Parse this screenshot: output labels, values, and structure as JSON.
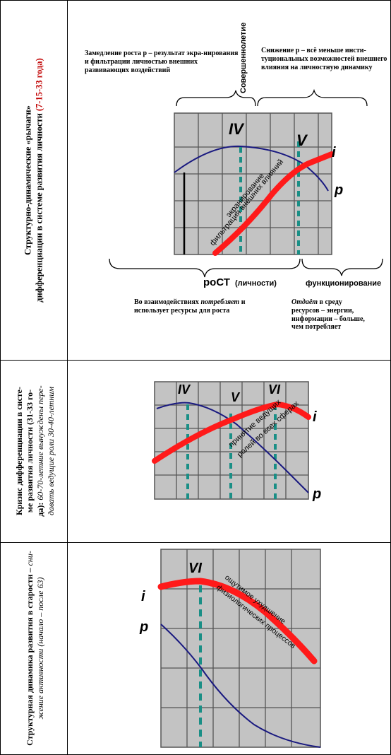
{
  "rows": [
    {
      "title_line1": "Структурно-динамические «рычаги»",
      "title_line2": "дифференциации в системе развития личности",
      "title_line2_highlight": "(7-15-33 года)",
      "top_left_note": "Замедление роста p – результат экра-нирования и фильтрации личностью внешних развивающих воздействий",
      "top_center_note": "Совершеннолетие",
      "top_right_note": "Снижение p – всё меньше инсти-туциональных возможностей внешнего влияния на личностную динамику",
      "phase_a": "IV",
      "phase_b": "V",
      "curve_i": "i",
      "curve_p": "p",
      "diag_text_1": "экранирование",
      "diag_text_2": "фильтрация внешних влияний",
      "growth_label": "роСТ",
      "growth_suffix": "(личности)",
      "function_label": "функционирование",
      "bottom_left_note_1": "Во взаимодействиях",
      "bottom_left_note_2": "потребляет",
      "bottom_left_note_3": "и использует ресурсы для роста",
      "bottom_right_note_1": "Отдаёт",
      "bottom_right_note_2": "в среду ресурсов – энергии, информации – больше, чем потребляет"
    },
    {
      "title_line1": "Кризис дифференциации в систе-",
      "title_line2": "ме развития личности (31-33 го-",
      "title_line3": "да):",
      "title_line3_italic": "60-70-летние вынуждены пере-",
      "title_line4_italic": "давать ведущие роли 30-40-летним",
      "phase_a": "IV",
      "phase_b": "V",
      "phase_c": "VI",
      "curve_i": "i",
      "curve_p": "p",
      "diag_text_1": "принятие ведущих",
      "diag_text_2": "ролей во всех сферах"
    },
    {
      "title_line1": "Структурная динамика развития в старости –",
      "title_line1_italic": "сни-",
      "title_line2_italic": "жение активности (начало – после 63)",
      "phase_a": "VI",
      "curve_i": "i",
      "curve_p": "p",
      "diag_text_1": "ощутимое ухудшение",
      "diag_text_2": "физиологических процессов"
    }
  ],
  "colors": {
    "curve_i": "#ff1a1a",
    "curve_p": "#1a1a80",
    "dashed_line": "#1a8f86",
    "grid_bg": "#c3c3c3",
    "grid_line": "#555555",
    "highlight_title": "#c00000"
  }
}
